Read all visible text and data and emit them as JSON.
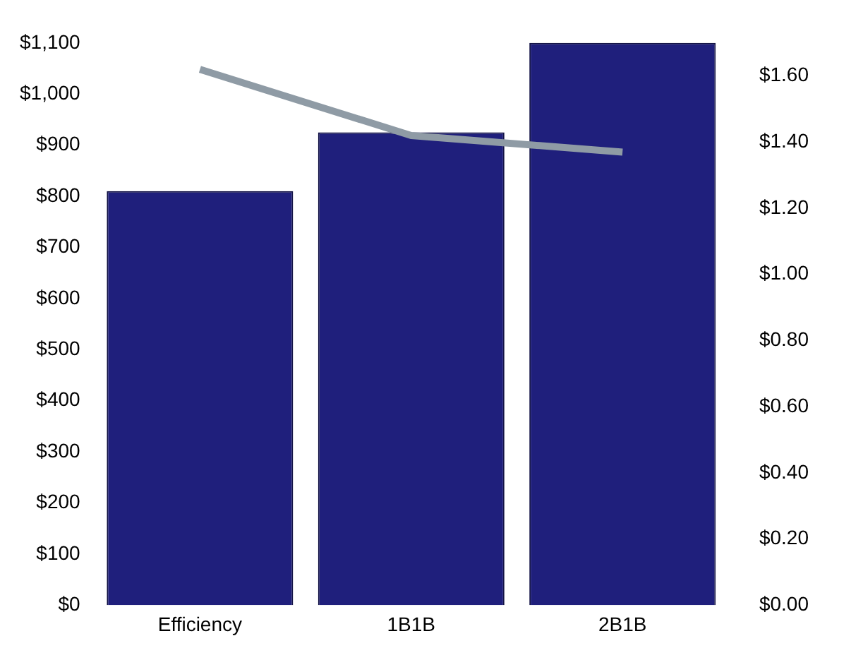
{
  "chart_data": {
    "type": "bar",
    "categories": [
      "Efficiency",
      "1B1B",
      "2B1B"
    ],
    "series": [
      {
        "color": "#1f1f7c",
        "values": [
          810,
          925,
          1100
        ]
      },
      {
        "type": "line",
        "axis": "y2",
        "color": "#8f9ba5",
        "values": [
          1.62,
          1.42,
          1.37
        ]
      }
    ],
    "ylim": [
      0,
      1100
    ],
    "yticks": [
      {
        "value": 0,
        "label": "$0"
      },
      {
        "value": 100,
        "label": "$100"
      },
      {
        "value": 200,
        "label": "$200"
      },
      {
        "value": 300,
        "label": "$300"
      },
      {
        "value": 400,
        "label": "$400"
      },
      {
        "value": 500,
        "label": "$500"
      },
      {
        "value": 600,
        "label": "$600"
      },
      {
        "value": 700,
        "label": "$700"
      },
      {
        "value": 800,
        "label": "$800"
      },
      {
        "value": 900,
        "label": "$900"
      },
      {
        "value": 1000,
        "label": "$1,000"
      },
      {
        "value": 1100,
        "label": "$1,100"
      }
    ],
    "y2lim": [
      0,
      1.7
    ],
    "y2ticks": [
      {
        "value": 0,
        "label": "$0.00"
      },
      {
        "value": 0.2,
        "label": "$0.20"
      },
      {
        "value": 0.4,
        "label": "$0.40"
      },
      {
        "value": 0.6,
        "label": "$0.60"
      },
      {
        "value": 0.8,
        "label": "$0.80"
      },
      {
        "value": 1,
        "label": "$1.00"
      },
      {
        "value": 1.2,
        "label": "$1.20"
      },
      {
        "value": 1.4,
        "label": "$1.40"
      },
      {
        "value": 1.6,
        "label": "$1.60"
      }
    ],
    "grid": false,
    "legend": false,
    "marker": "none"
  }
}
